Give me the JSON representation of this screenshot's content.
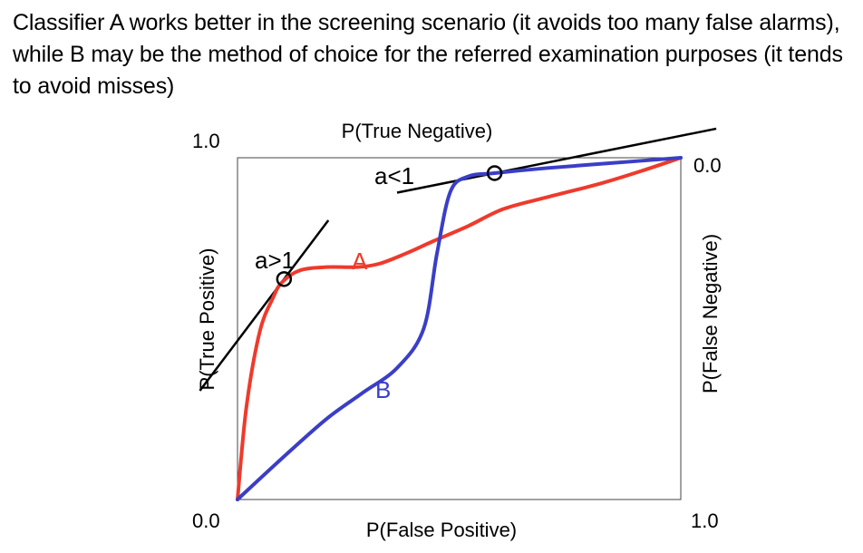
{
  "caption": "Classifier A works better in the screening scenario (it avoids too many false alarms), while B may be the method of choice for the referred examination purposes (it tends to avoid misses)",
  "chart_data": {
    "type": "line",
    "title": "",
    "xlabel": "P(False Positive)",
    "ylabel": "P(True Positive)",
    "top_axis_label": "P(True Negative)",
    "right_axis_label": "P(False Negative)",
    "xlim": [
      0,
      1
    ],
    "ylim": [
      0,
      1
    ],
    "tick_labels": {
      "bottom_left": "0.0",
      "bottom_right": "1.0",
      "left_top": "1.0",
      "right_top": "0.0"
    },
    "grid": false,
    "series": [
      {
        "name": "A",
        "color": "#ee3a2c",
        "points": [
          [
            0.0,
            0.0
          ],
          [
            0.02,
            0.27
          ],
          [
            0.05,
            0.49
          ],
          [
            0.08,
            0.59
          ],
          [
            0.1,
            0.635
          ],
          [
            0.14,
            0.67
          ],
          [
            0.2,
            0.68
          ],
          [
            0.27,
            0.68
          ],
          [
            0.32,
            0.69
          ],
          [
            0.38,
            0.72
          ],
          [
            0.44,
            0.755
          ],
          [
            0.52,
            0.8
          ],
          [
            0.6,
            0.85
          ],
          [
            0.7,
            0.885
          ],
          [
            0.82,
            0.925
          ],
          [
            0.92,
            0.965
          ],
          [
            1.0,
            1.0
          ]
        ]
      },
      {
        "name": "B",
        "color": "#3b3ec6",
        "points": [
          [
            0.0,
            0.0
          ],
          [
            0.1,
            0.12
          ],
          [
            0.2,
            0.235
          ],
          [
            0.28,
            0.31
          ],
          [
            0.36,
            0.385
          ],
          [
            0.42,
            0.5
          ],
          [
            0.45,
            0.72
          ],
          [
            0.48,
            0.9
          ],
          [
            0.52,
            0.945
          ],
          [
            0.58,
            0.955
          ],
          [
            0.7,
            0.97
          ],
          [
            0.85,
            0.985
          ],
          [
            1.0,
            1.0
          ]
        ]
      }
    ],
    "annotations": [
      {
        "label": "a>1",
        "type": "tangent",
        "series": "A",
        "point": [
          0.105,
          0.645
        ],
        "x_range": [
          -0.085,
          0.205
        ]
      },
      {
        "label": "a<1",
        "type": "tangent",
        "series": "B",
        "point": [
          0.58,
          0.955
        ],
        "x_range": [
          0.36,
          1.08
        ]
      }
    ]
  }
}
